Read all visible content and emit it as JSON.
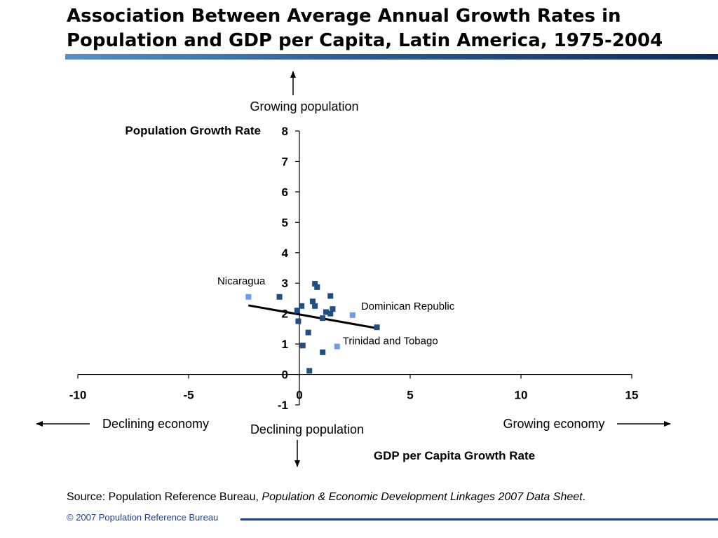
{
  "title": "Association Between Average Annual Growth Rates in Population and GDP per Capita, Latin America, 1975-2004",
  "annotations": {
    "growing_population": "Growing population",
    "declining_population": "Declining population",
    "declining_economy": "Declining economy",
    "growing_economy": "Growing economy"
  },
  "source": {
    "prefix": "Source: Population Reference Bureau,",
    "publication": "Population & Economic Development Linkages 2007 Data Sheet",
    "suffix": "."
  },
  "copyright": "© 2007 Population Reference Bureau",
  "colors": {
    "regular_point": "#1f4e80",
    "highlight_point": "#6f9cf0",
    "trend_line": "#000000",
    "axis": "#000000"
  },
  "chart_data": {
    "type": "scatter",
    "xlabel": "GDP per Capita Growth Rate",
    "ylabel": "Population Growth Rate",
    "xlim": [
      -10,
      15
    ],
    "ylim": [
      -1,
      8
    ],
    "xticks": [
      -10,
      -5,
      0,
      5,
      10,
      15
    ],
    "yticks": [
      -1,
      0,
      1,
      2,
      3,
      4,
      5,
      6,
      7,
      8
    ],
    "grid": false,
    "series": [
      {
        "points": [
          {
            "x": -0.9,
            "y": 2.55
          },
          {
            "x": 0.7,
            "y": 2.98
          },
          {
            "x": 0.8,
            "y": 2.87
          },
          {
            "x": 1.4,
            "y": 2.58
          },
          {
            "x": 0.6,
            "y": 2.4
          },
          {
            "x": 0.7,
            "y": 2.25
          },
          {
            "x": 0.1,
            "y": 2.25
          },
          {
            "x": -0.1,
            "y": 2.1
          },
          {
            "x": 1.2,
            "y": 2.05
          },
          {
            "x": 1.5,
            "y": 2.15
          },
          {
            "x": 1.4,
            "y": 2.0
          },
          {
            "x": 1.05,
            "y": 1.85
          },
          {
            "x": -0.05,
            "y": 1.75
          },
          {
            "x": 0.4,
            "y": 1.38
          },
          {
            "x": 3.5,
            "y": 1.55
          },
          {
            "x": 0.15,
            "y": 0.95
          },
          {
            "x": 1.05,
            "y": 0.73
          },
          {
            "x": 0.45,
            "y": 0.12
          }
        ]
      },
      {
        "points": [
          {
            "x": -2.3,
            "y": 2.55,
            "label": "Nicaragua"
          },
          {
            "x": 2.4,
            "y": 1.95,
            "label": "Dominican Republic"
          },
          {
            "x": 1.7,
            "y": 0.92,
            "label": "Trinidad and Tobago"
          }
        ]
      }
    ],
    "trendline": {
      "x": [
        -2.3,
        3.5
      ],
      "y": [
        2.27,
        1.52
      ]
    }
  }
}
